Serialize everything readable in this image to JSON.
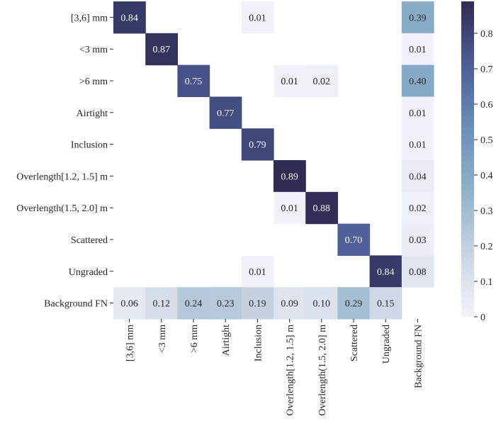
{
  "chart_data": {
    "type": "heatmap",
    "row_labels": [
      "[3,6] mm",
      "<3 mm",
      ">6 mm",
      "Airtight",
      "Inclusion",
      "Overlength[1.2, 1.5] m",
      "Overlength(1.5, 2.0] m",
      "Scattered",
      "Ungraded",
      "Background FN"
    ],
    "col_labels": [
      "[3,6] mm",
      "<3 mm",
      ">6 mm",
      "Airtight",
      "Inclusion",
      "Overlength[1.2, 1.5] m",
      "Overlength(1.5, 2.0] m",
      "Scattered",
      "Ungraded",
      "Background FN"
    ],
    "values": [
      [
        0.84,
        null,
        null,
        null,
        0.01,
        null,
        null,
        null,
        null,
        0.39
      ],
      [
        null,
        0.87,
        null,
        null,
        null,
        null,
        null,
        null,
        null,
        0.01
      ],
      [
        null,
        null,
        0.75,
        null,
        null,
        0.01,
        0.02,
        null,
        null,
        0.4
      ],
      [
        null,
        null,
        null,
        0.77,
        null,
        null,
        null,
        null,
        null,
        0.01
      ],
      [
        null,
        null,
        null,
        null,
        0.79,
        null,
        null,
        null,
        null,
        0.01
      ],
      [
        null,
        null,
        null,
        null,
        null,
        0.89,
        null,
        null,
        null,
        0.04
      ],
      [
        null,
        null,
        null,
        null,
        null,
        0.01,
        0.88,
        null,
        null,
        0.02
      ],
      [
        null,
        null,
        null,
        null,
        null,
        null,
        null,
        0.7,
        null,
        0.03
      ],
      [
        null,
        null,
        null,
        null,
        0.01,
        null,
        null,
        null,
        0.84,
        0.08
      ],
      [
        0.06,
        0.12,
        0.24,
        0.23,
        0.19,
        0.09,
        0.1,
        0.29,
        0.15,
        null
      ]
    ],
    "value_labels": [
      [
        "0.84",
        "",
        "",
        "",
        "0.01",
        "",
        "",
        "",
        "",
        "0.39"
      ],
      [
        "",
        "0.87",
        "",
        "",
        "",
        "",
        "",
        "",
        "",
        "0.01"
      ],
      [
        "",
        "",
        "0.75",
        "",
        "",
        "0.01",
        "0.02",
        "",
        "",
        "0.40"
      ],
      [
        "",
        "",
        "",
        "0.77",
        "",
        "",
        "",
        "",
        "",
        "0.01"
      ],
      [
        "",
        "",
        "",
        "",
        "0.79",
        "",
        "",
        "",
        "",
        "0.01"
      ],
      [
        "",
        "",
        "",
        "",
        "",
        "0.89",
        "",
        "",
        "",
        "0.04"
      ],
      [
        "",
        "",
        "",
        "",
        "",
        "0.01",
        "0.88",
        "",
        "",
        "0.02"
      ],
      [
        "",
        "",
        "",
        "",
        "",
        "",
        "",
        "0.70",
        "",
        "0.03"
      ],
      [
        "",
        "",
        "",
        "",
        "0.01",
        "",
        "",
        "",
        "0.84",
        "0.08"
      ],
      [
        "0.06",
        "0.12",
        "0.24",
        "0.23",
        "0.19",
        "0.09",
        "0.10",
        "0.29",
        "0.15",
        ""
      ]
    ],
    "vmin": 0,
    "vmax": 0.89,
    "colorbar_ticks": [
      0,
      0.1,
      0.2,
      0.3,
      0.4,
      0.5,
      0.6,
      0.7,
      0.8
    ],
    "colorbar_tick_labels": [
      "0",
      "0.1",
      "0.2",
      "0.3",
      "0.4",
      "0.5",
      "0.6",
      "0.7",
      "0.8"
    ],
    "colormap_stops": [
      "#f3f4fa",
      "#c9d3e3",
      "#8fb2c9",
      "#6a8fb8",
      "#4d5e96",
      "#2f2c53"
    ],
    "empty_cell_color": "#ffffff",
    "title": "",
    "xlabel": "",
    "ylabel": ""
  }
}
